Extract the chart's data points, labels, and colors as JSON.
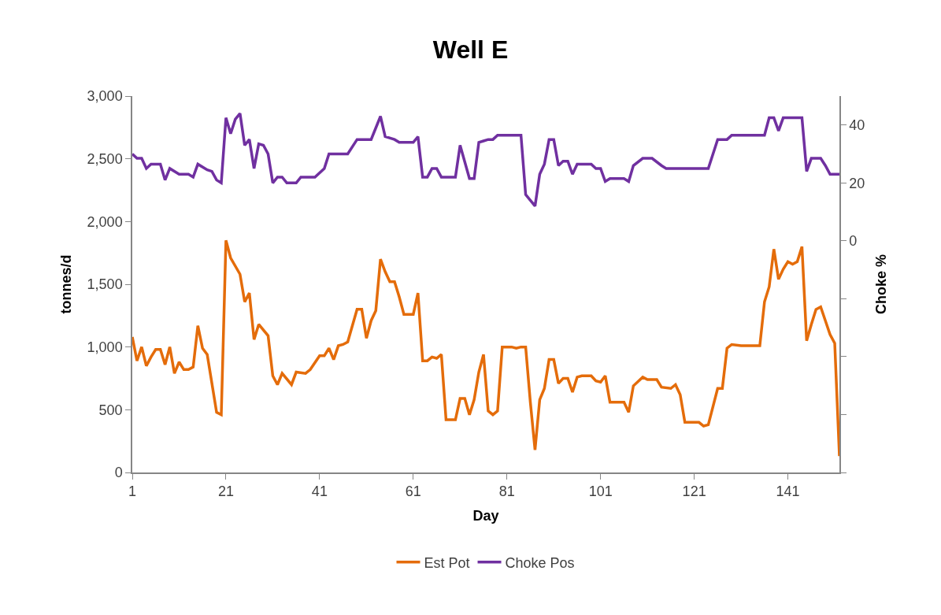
{
  "chart_data": {
    "type": "line",
    "title": "Well E",
    "xlabel": "Day",
    "ylabel": "tonnes/d",
    "y2label": "Choke %",
    "xlim": [
      1,
      152
    ],
    "xticks": [
      1,
      21,
      41,
      61,
      81,
      101,
      121,
      141
    ],
    "ylim": [
      0,
      3000
    ],
    "yticks": [
      0,
      500,
      {
        "value": 1000,
        "label": "1,000"
      },
      {
        "value": 1500,
        "label": "1,500"
      },
      {
        "value": 2000,
        "label": "2,000"
      },
      {
        "value": 2500,
        "label": "2,500"
      },
      {
        "value": 3000,
        "label": "3,000"
      }
    ],
    "y2lim": [
      -80,
      50
    ],
    "y2ticks": [
      {
        "value": -80,
        "label": null
      },
      {
        "value": -60,
        "label": null
      },
      {
        "value": -40,
        "label": null
      },
      {
        "value": -20,
        "label": null
      },
      0,
      20,
      40
    ],
    "legend": "bottom",
    "marker": "none",
    "line_style": "solid",
    "series": [
      {
        "name": "Est Pot",
        "color": "#e46c0a",
        "x": [
          1,
          2,
          3,
          4,
          5,
          6,
          7,
          8,
          9,
          10,
          11,
          12,
          13,
          14,
          15,
          16,
          17,
          19,
          20,
          21,
          22,
          24,
          25,
          26,
          27,
          28,
          30,
          31,
          32,
          33,
          35,
          36,
          38,
          39,
          41,
          42,
          43,
          44,
          45,
          46,
          47,
          49,
          50,
          51,
          52,
          53,
          54,
          55,
          56,
          57,
          58,
          59,
          61,
          62,
          63,
          64,
          65,
          66,
          67,
          68,
          70,
          71,
          72,
          73,
          74,
          75,
          76,
          77,
          78,
          79,
          80,
          82,
          83,
          84,
          85,
          86,
          87,
          88,
          89,
          90,
          91,
          92,
          93,
          94,
          95,
          96,
          97,
          99,
          100,
          101,
          102,
          103,
          106,
          107,
          108,
          110,
          111,
          113,
          114,
          116,
          117,
          118,
          119,
          122,
          123,
          124,
          126,
          127,
          128,
          129,
          131,
          135,
          136,
          137,
          138,
          139,
          140,
          141,
          142,
          143,
          144,
          145,
          146,
          147,
          148,
          149,
          150,
          151,
          152
        ],
        "values": [
          1080,
          890,
          1000,
          850,
          920,
          980,
          980,
          860,
          1000,
          790,
          880,
          820,
          820,
          840,
          1170,
          990,
          940,
          480,
          460,
          1850,
          1710,
          1580,
          1360,
          1430,
          1060,
          1180,
          1090,
          770,
          700,
          790,
          700,
          800,
          790,
          820,
          930,
          930,
          990,
          900,
          1010,
          1020,
          1040,
          1300,
          1300,
          1070,
          1210,
          1290,
          1700,
          1600,
          1520,
          1520,
          1400,
          1260,
          1260,
          1430,
          890,
          890,
          920,
          910,
          940,
          420,
          420,
          590,
          590,
          460,
          580,
          800,
          940,
          490,
          460,
          490,
          1000,
          1000,
          990,
          1000,
          1000,
          560,
          180,
          580,
          670,
          900,
          900,
          710,
          750,
          750,
          640,
          760,
          770,
          770,
          730,
          720,
          770,
          560,
          560,
          480,
          690,
          760,
          740,
          740,
          680,
          670,
          700,
          620,
          400,
          400,
          370,
          380,
          670,
          670,
          990,
          1020,
          1010,
          1010,
          1360,
          1480,
          1780,
          1540,
          1620,
          1680,
          1660,
          1680,
          1800,
          1050,
          1180,
          1300,
          1320,
          1210,
          1100,
          1030,
          130
        ]
      },
      {
        "name": "Choke Pos",
        "color": "#7030a0",
        "axis": "y2",
        "x": [
          1,
          2,
          3,
          4,
          5,
          7,
          8,
          9,
          11,
          13,
          14,
          15,
          17,
          18,
          19,
          20,
          21,
          22,
          23,
          24,
          25,
          26,
          27,
          28,
          29,
          30,
          31,
          32,
          33,
          34,
          36,
          37,
          40,
          42,
          43,
          47,
          49,
          52,
          54,
          55,
          57,
          58,
          61,
          62,
          63,
          64,
          65,
          66,
          67,
          70,
          71,
          73,
          74,
          75,
          76,
          77,
          78,
          79,
          84,
          85,
          87,
          88,
          89,
          90,
          91,
          92,
          93,
          94,
          95,
          96,
          99,
          100,
          101,
          102,
          103,
          106,
          107,
          108,
          110,
          112,
          114,
          115,
          124,
          126,
          128,
          129,
          136,
          137,
          138,
          139,
          140,
          144,
          145,
          146,
          148,
          149,
          150,
          152
        ],
        "values": [
          30,
          28.5,
          28.5,
          25,
          26.5,
          26.5,
          21,
          25,
          23,
          23,
          22,
          26.5,
          24.5,
          24,
          21,
          20,
          42.5,
          37,
          42,
          44,
          33,
          35,
          25,
          33.5,
          33,
          30,
          20,
          22,
          22,
          20,
          20,
          22,
          22,
          25,
          30,
          30,
          35,
          35,
          43,
          36,
          35,
          34,
          34,
          36,
          22,
          22,
          25,
          25,
          22,
          22,
          33,
          21.5,
          21.5,
          34,
          34.5,
          35,
          35,
          36.5,
          36.5,
          16,
          12,
          23,
          26.5,
          35,
          35,
          26,
          27.5,
          27.5,
          23,
          26.5,
          26.5,
          25,
          25,
          20.5,
          21.5,
          21.5,
          20.5,
          26,
          28.5,
          28.5,
          26,
          25,
          25,
          35,
          35,
          36.5,
          36.5,
          42.5,
          42.5,
          38,
          42.5,
          42.5,
          24,
          28.5,
          28.5,
          26,
          23,
          23
        ]
      }
    ]
  }
}
